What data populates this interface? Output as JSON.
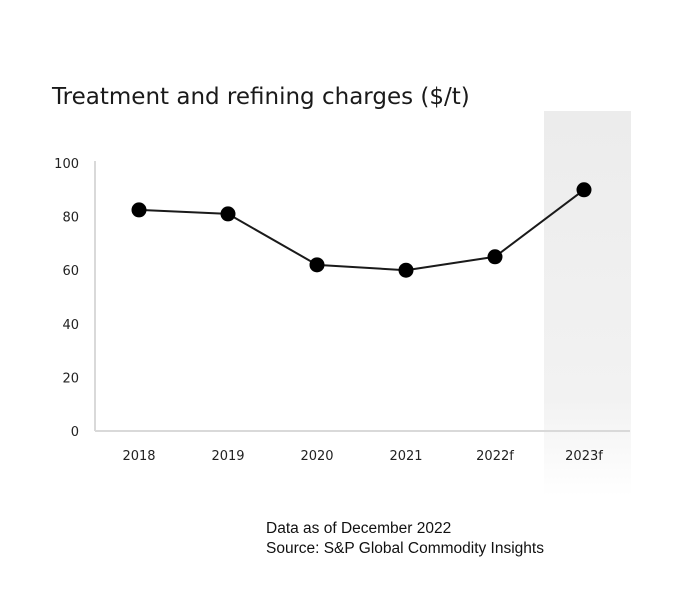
{
  "chart_data": {
    "type": "line",
    "title": "Treatment and refining charges ($/t)",
    "categories": [
      "2018",
      "2019",
      "2020",
      "2021",
      "2022f",
      "2023f"
    ],
    "series": [
      {
        "name": "Treatment and refining charges",
        "values": [
          82.5,
          81,
          62,
          60,
          65,
          90
        ]
      }
    ],
    "ylim": [
      0,
      100
    ],
    "yticks": [
      0,
      20,
      40,
      60,
      80,
      100
    ],
    "xlabel": "",
    "ylabel": "",
    "highlight_category": "2023f",
    "colors": {
      "line": "#1a1a1a",
      "marker": "#000000",
      "axis": "#d9d9d9",
      "highlight_band": "#f1f1f1"
    }
  },
  "footnote": {
    "date_line": "Data as of December 2022",
    "source_line": "Source: S&P Global Commodity Insights"
  }
}
